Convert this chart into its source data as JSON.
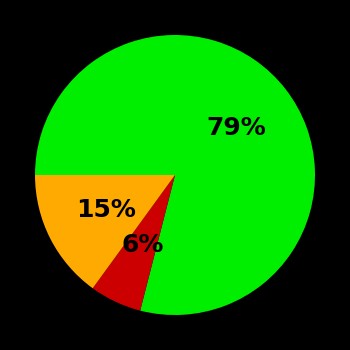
{
  "slices": [
    79,
    6,
    15
  ],
  "colors": [
    "#00ee00",
    "#cc0000",
    "#ffaa00"
  ],
  "labels": [
    "79%",
    "6%",
    "15%"
  ],
  "background_color": "#000000",
  "label_fontsize": 18,
  "label_color": "#000000",
  "startangle": 180,
  "label_distance": 0.55
}
